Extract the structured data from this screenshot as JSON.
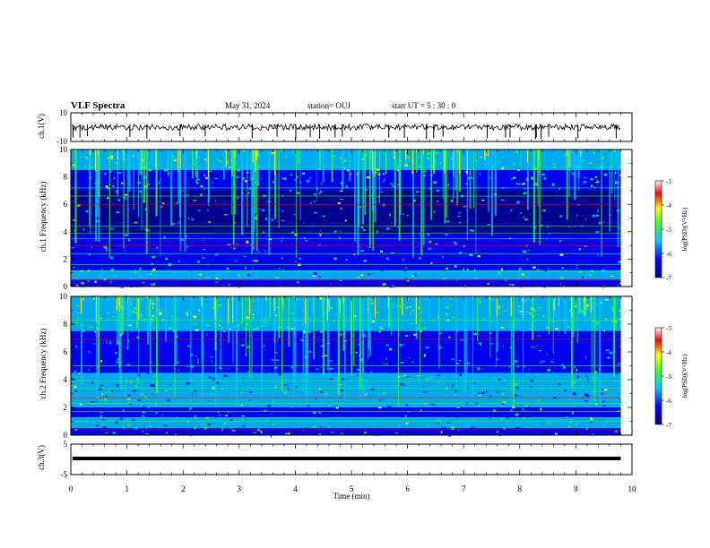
{
  "header": {
    "title": "VLF Spectra",
    "date": "May 31, 2024",
    "station": "station= OUJ",
    "start": "start  UT =   5 : 30 : 0"
  },
  "colors": {
    "deep_blue": "#00008f",
    "blue": "#0000ff",
    "cyan": "#00c8ff",
    "green": "#33ff33",
    "yellow": "#ffff00",
    "red": "#ff0000"
  },
  "chart_data": [
    {
      "type": "line",
      "name": "ch1-waveform",
      "ylabel": "ch.1(V)",
      "ylim": [
        -10,
        10
      ],
      "yticks": [
        "10",
        "-10"
      ],
      "xlim": [
        0,
        10
      ]
    },
    {
      "type": "heatmap",
      "name": "ch1-spectrogram",
      "ylabel": "ch.1 Frequency (kHz)",
      "ylim": [
        0,
        10
      ],
      "yticks": [
        "0",
        "2",
        "4",
        "6",
        "8",
        "10"
      ],
      "xlim": [
        0,
        10
      ],
      "colorbar": {
        "label": "log(PSD)(V²/Hz)",
        "range": [
          -7,
          -3
        ],
        "ticks": [
          "-3",
          "-4",
          "-5",
          "-6",
          "-7"
        ]
      }
    },
    {
      "type": "heatmap",
      "name": "ch2-spectrogram",
      "ylabel": "ch.2 Frequency (kHz)",
      "ylim": [
        0,
        10
      ],
      "yticks": [
        "0",
        "2",
        "4",
        "6",
        "8",
        "10"
      ],
      "xlim": [
        0,
        10
      ],
      "colorbar": {
        "label": "log(PSD)(V²/Hz)",
        "range": [
          -7,
          -3
        ],
        "ticks": [
          "-3",
          "-4",
          "-5",
          "-6",
          "-7"
        ]
      }
    },
    {
      "type": "line",
      "name": "ch3-waveform",
      "ylabel": "ch.3(V)",
      "ylim": [
        -5,
        5
      ],
      "yticks": [
        "5",
        "-5"
      ],
      "xlim": [
        0,
        10
      ],
      "xlabel": "Time  (min)",
      "xticks": [
        "0",
        "1",
        "2",
        "3",
        "4",
        "5",
        "6",
        "7",
        "8",
        "9",
        "10"
      ]
    }
  ]
}
